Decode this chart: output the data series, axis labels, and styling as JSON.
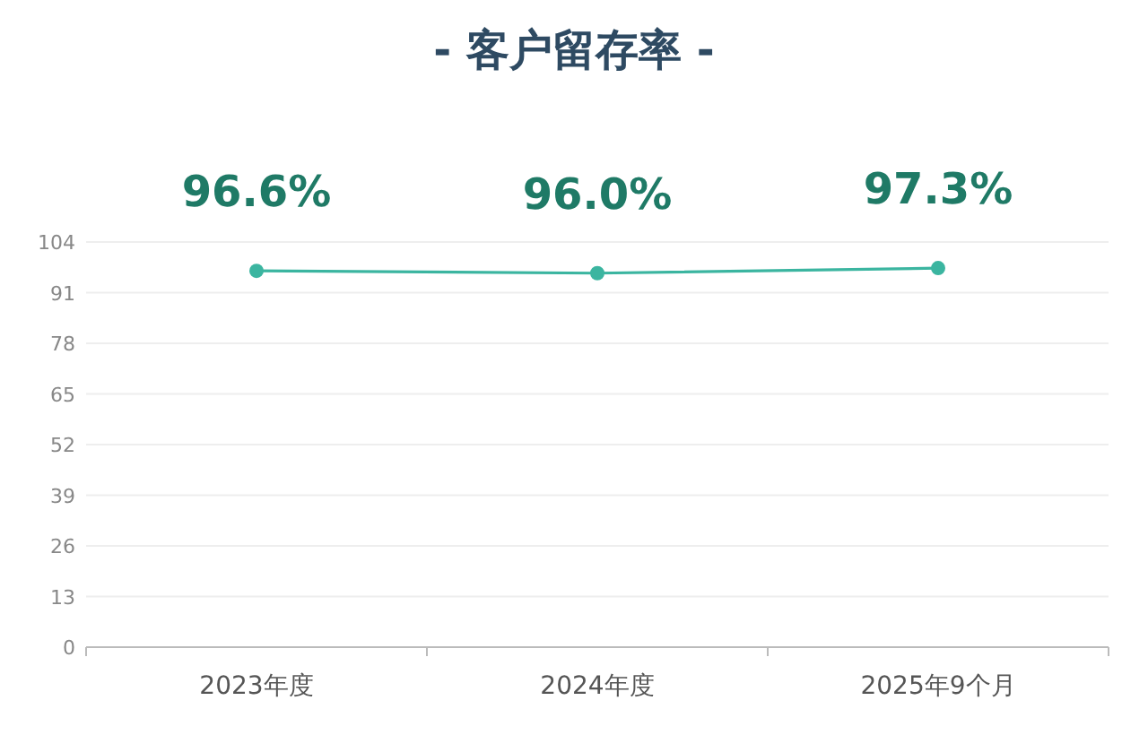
{
  "chart_data": {
    "type": "line",
    "title": "- 客户留存率 -",
    "categories": [
      "2023年度",
      "2024年度",
      "2025年9个月"
    ],
    "series": [
      {
        "color": "#3bb5a0",
        "values": [
          96.6,
          96.0,
          97.3
        ],
        "value_labels": [
          "96.6%",
          "96.0%",
          "97.3%"
        ]
      }
    ],
    "ylim": [
      0,
      104
    ],
    "yticks": [
      0,
      13,
      26,
      39,
      52,
      65,
      78,
      91,
      104
    ],
    "grid": "y",
    "marker": "circle",
    "line_style": "solid"
  }
}
